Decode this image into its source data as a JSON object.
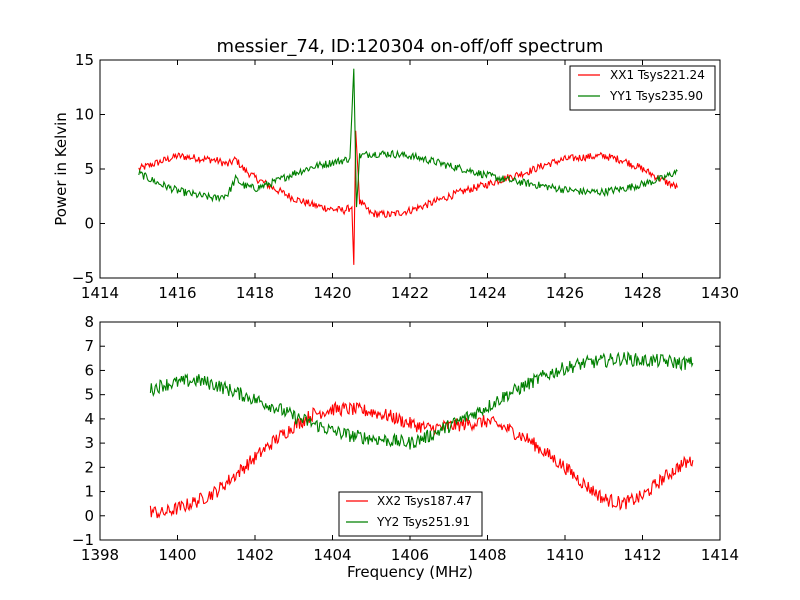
{
  "chart_data": [
    {
      "type": "line",
      "title": "messier_74, ID:120304 on-off/off spectrum",
      "xlabel": "",
      "ylabel": "Power in Kelvin",
      "xlim": [
        1414,
        1430
      ],
      "ylim": [
        -5,
        15
      ],
      "xticks": [
        "1414",
        "1416",
        "1418",
        "1420",
        "1422",
        "1424",
        "1426",
        "1428",
        "1430"
      ],
      "yticks": [
        "−5",
        "0",
        "5",
        "10",
        "15"
      ],
      "legend_position": "top-right",
      "series": [
        {
          "name": "XX1 Tsys221.24",
          "color": "#ff0000",
          "points": [
            [
              1415.0,
              5.0
            ],
            [
              1415.5,
              5.6
            ],
            [
              1416.0,
              6.2
            ],
            [
              1416.5,
              6.0
            ],
            [
              1417.0,
              5.8
            ],
            [
              1417.3,
              5.4
            ],
            [
              1417.5,
              5.9
            ],
            [
              1417.7,
              5.0
            ],
            [
              1418.0,
              4.2
            ],
            [
              1418.5,
              3.2
            ],
            [
              1419.0,
              2.3
            ],
            [
              1419.5,
              1.7
            ],
            [
              1420.0,
              1.3
            ],
            [
              1420.3,
              1.2
            ],
            [
              1420.5,
              1.5
            ],
            [
              1420.55,
              -3.8
            ],
            [
              1420.6,
              8.5
            ],
            [
              1420.7,
              2.0
            ],
            [
              1421.0,
              0.9
            ],
            [
              1421.5,
              0.8
            ],
            [
              1422.0,
              1.2
            ],
            [
              1422.5,
              1.8
            ],
            [
              1423.0,
              2.5
            ],
            [
              1423.5,
              3.1
            ],
            [
              1424.0,
              3.6
            ],
            [
              1424.5,
              4.2
            ],
            [
              1425.0,
              4.7
            ],
            [
              1425.5,
              5.4
            ],
            [
              1426.0,
              5.9
            ],
            [
              1426.5,
              6.1
            ],
            [
              1427.0,
              6.2
            ],
            [
              1427.5,
              5.8
            ],
            [
              1428.0,
              5.0
            ],
            [
              1428.5,
              4.0
            ],
            [
              1428.9,
              3.3
            ]
          ]
        },
        {
          "name": "YY1 Tsys235.90",
          "color": "#008000",
          "points": [
            [
              1415.0,
              4.6
            ],
            [
              1415.5,
              3.7
            ],
            [
              1416.0,
              3.0
            ],
            [
              1416.5,
              2.6
            ],
            [
              1417.0,
              2.3
            ],
            [
              1417.3,
              2.7
            ],
            [
              1417.5,
              4.1
            ],
            [
              1417.7,
              3.5
            ],
            [
              1418.0,
              3.2
            ],
            [
              1418.5,
              3.8
            ],
            [
              1419.0,
              4.6
            ],
            [
              1419.5,
              5.2
            ],
            [
              1420.0,
              5.6
            ],
            [
              1420.3,
              5.8
            ],
            [
              1420.45,
              6.0
            ],
            [
              1420.55,
              14.2
            ],
            [
              1420.62,
              1.5
            ],
            [
              1420.7,
              6.2
            ],
            [
              1421.0,
              6.4
            ],
            [
              1421.5,
              6.4
            ],
            [
              1422.0,
              6.2
            ],
            [
              1422.5,
              5.8
            ],
            [
              1423.0,
              5.3
            ],
            [
              1423.5,
              4.9
            ],
            [
              1424.0,
              4.4
            ],
            [
              1424.5,
              4.0
            ],
            [
              1425.0,
              3.7
            ],
            [
              1425.5,
              3.4
            ],
            [
              1426.0,
              3.1
            ],
            [
              1426.5,
              2.9
            ],
            [
              1427.0,
              2.9
            ],
            [
              1427.5,
              3.2
            ],
            [
              1428.0,
              3.6
            ],
            [
              1428.5,
              4.1
            ],
            [
              1428.9,
              4.8
            ]
          ]
        }
      ]
    },
    {
      "type": "line",
      "title": "",
      "xlabel": "Frequency (MHz)",
      "ylabel": "",
      "xlim": [
        1398,
        1414
      ],
      "ylim": [
        -1,
        8
      ],
      "xticks": [
        "1398",
        "1400",
        "1402",
        "1404",
        "1406",
        "1408",
        "1410",
        "1412",
        "1414"
      ],
      "yticks": [
        "−1",
        "0",
        "1",
        "2",
        "3",
        "4",
        "5",
        "6",
        "7",
        "8"
      ],
      "legend_position": "bottom-center",
      "series": [
        {
          "name": "XX2 Tsys187.47",
          "color": "#ff0000",
          "points": [
            [
              1399.3,
              0.2
            ],
            [
              1399.6,
              0.1
            ],
            [
              1400.0,
              0.3
            ],
            [
              1400.5,
              0.6
            ],
            [
              1401.0,
              1.0
            ],
            [
              1401.5,
              1.7
            ],
            [
              1402.0,
              2.4
            ],
            [
              1402.5,
              3.1
            ],
            [
              1403.0,
              3.7
            ],
            [
              1403.5,
              4.2
            ],
            [
              1404.0,
              4.4
            ],
            [
              1404.5,
              4.4
            ],
            [
              1405.0,
              4.3
            ],
            [
              1405.5,
              4.1
            ],
            [
              1406.0,
              3.8
            ],
            [
              1406.5,
              3.6
            ],
            [
              1407.0,
              3.7
            ],
            [
              1407.5,
              3.8
            ],
            [
              1408.0,
              3.9
            ],
            [
              1408.5,
              3.6
            ],
            [
              1409.0,
              3.2
            ],
            [
              1409.5,
              2.6
            ],
            [
              1410.0,
              2.0
            ],
            [
              1410.5,
              1.3
            ],
            [
              1411.0,
              0.7
            ],
            [
              1411.5,
              0.5
            ],
            [
              1412.0,
              0.8
            ],
            [
              1412.5,
              1.5
            ],
            [
              1413.0,
              2.1
            ],
            [
              1413.3,
              2.3
            ]
          ]
        },
        {
          "name": "YY2 Tsys251.91",
          "color": "#008000",
          "points": [
            [
              1399.3,
              5.2
            ],
            [
              1399.6,
              5.4
            ],
            [
              1400.0,
              5.5
            ],
            [
              1400.5,
              5.6
            ],
            [
              1401.0,
              5.4
            ],
            [
              1401.5,
              5.1
            ],
            [
              1402.0,
              4.8
            ],
            [
              1402.5,
              4.5
            ],
            [
              1403.0,
              4.1
            ],
            [
              1403.5,
              3.8
            ],
            [
              1404.0,
              3.5
            ],
            [
              1404.5,
              3.3
            ],
            [
              1405.0,
              3.2
            ],
            [
              1405.5,
              3.1
            ],
            [
              1406.0,
              3.0
            ],
            [
              1406.5,
              3.3
            ],
            [
              1407.0,
              3.7
            ],
            [
              1407.5,
              4.1
            ],
            [
              1408.0,
              4.5
            ],
            [
              1408.5,
              5.0
            ],
            [
              1409.0,
              5.4
            ],
            [
              1409.5,
              5.8
            ],
            [
              1410.0,
              6.1
            ],
            [
              1410.5,
              6.3
            ],
            [
              1411.0,
              6.4
            ],
            [
              1411.5,
              6.5
            ],
            [
              1412.0,
              6.4
            ],
            [
              1412.5,
              6.4
            ],
            [
              1413.0,
              6.3
            ],
            [
              1413.3,
              6.3
            ]
          ]
        }
      ]
    }
  ]
}
